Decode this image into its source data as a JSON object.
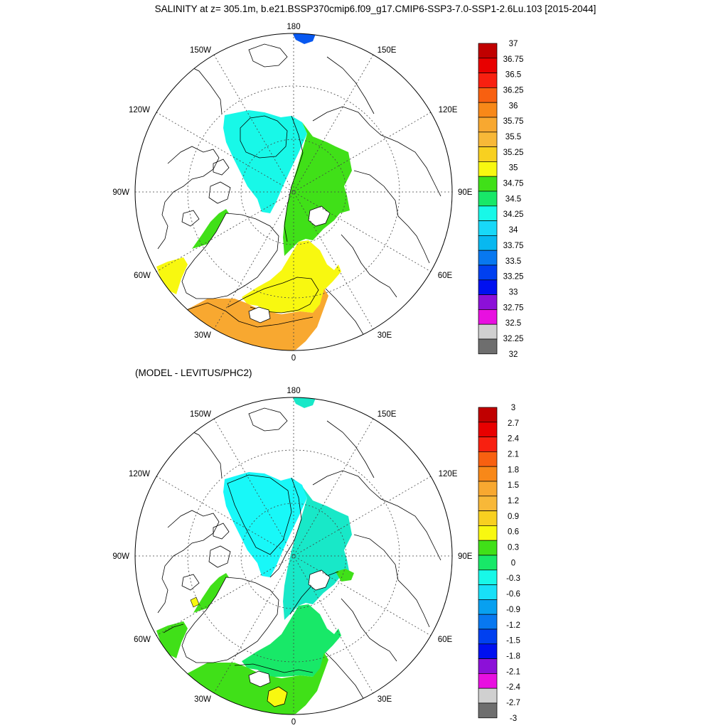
{
  "title": "SALINITY at z= 305.1m, b.e21.BSSP370cmip6.f09_g17.CMIP6-SSP3-7.0-SSP1-2.6Lu.103 [2015-2044]",
  "subtitle": "(MODEL - LEVITUS/PHC2)",
  "longitude_labels": {
    "top": "180",
    "bottom": "0",
    "left": "90W",
    "right": "90E",
    "upper_left_outer": "150W",
    "upper_right_outer": "150E",
    "upper_left_inner": "120W",
    "upper_right_inner": "120E",
    "lower_left_inner": "60W",
    "lower_right_inner": "60E",
    "lower_left_outer": "30W",
    "lower_right_outer": "30E"
  },
  "colors": {
    "land": "#ffffff",
    "fills": [
      "#6e6e6e",
      "#d0d0d0",
      "#e810e0",
      "#8c10d8",
      "#0010f0",
      "#0858f0",
      "#08a0f0",
      "#18d8f8",
      "#18f8e8",
      "#18e868",
      "#40e018",
      "#f8f810",
      "#f8d020",
      "#f8a830",
      "#f88818",
      "#f86010",
      "#f82010",
      "#e80000",
      "#c00000"
    ]
  },
  "panels": [
    {
      "name": "salinity",
      "colorbar_labels": [
        "37",
        "36.75",
        "36.5",
        "36.25",
        "36",
        "35.75",
        "35.5",
        "35.25",
        "35",
        "34.75",
        "34.5",
        "34.25",
        "34",
        "33.75",
        "33.5",
        "33.25",
        "33",
        "32.75",
        "32.5",
        "32.25",
        "32"
      ],
      "colorbar_colors": [
        "#c00000",
        "#e80000",
        "#f82010",
        "#f86010",
        "#f88818",
        "#f8a830",
        "#f8b838",
        "#f8d020",
        "#f8f810",
        "#40e018",
        "#18e868",
        "#18f8e8",
        "#18d8f8",
        "#08b8f0",
        "#0878f0",
        "#0040f0",
        "#0010f0",
        "#8c10d8",
        "#e810e0",
        "#d0d0d0",
        "#6e6e6e"
      ],
      "regions": {
        "central_arctic": "#18f8e8",
        "eurasian_basin": "#40e018",
        "core": "#18f8e8",
        "baffin": "#40e018",
        "nordic_seas": "#f8f810",
        "atlantic_north": "#f8a830",
        "labrador": "#f8f810",
        "bering": "#0858f0"
      }
    },
    {
      "name": "difference",
      "colorbar_labels": [
        "3",
        "2.7",
        "2.4",
        "2.1",
        "1.8",
        "1.5",
        "1.2",
        "0.9",
        "0.6",
        "0.3",
        "0",
        "-0.3",
        "-0.6",
        "-0.9",
        "-1.2",
        "-1.5",
        "-1.8",
        "-2.1",
        "-2.4",
        "-2.7",
        "-3"
      ],
      "colorbar_colors": [
        "#c00000",
        "#e80000",
        "#f82010",
        "#f86010",
        "#f88818",
        "#f8a830",
        "#f8b838",
        "#f8d020",
        "#f8f810",
        "#40e018",
        "#18e868",
        "#18f8e8",
        "#18e0f8",
        "#08a0f0",
        "#0878f0",
        "#0040f0",
        "#0010f0",
        "#8c10d8",
        "#e810e0",
        "#d0d0d0",
        "#6e6e6e"
      ],
      "regions": {
        "central_arctic": "#18f8f8",
        "eurasian_basin": "#18e8c8",
        "core": "#18f8f8",
        "baffin": "#40e018",
        "nordic_seas": "#18e868",
        "atlantic_north": "#40e018",
        "labrador": "#40e018",
        "bering": "#18e8c8"
      }
    }
  ]
}
